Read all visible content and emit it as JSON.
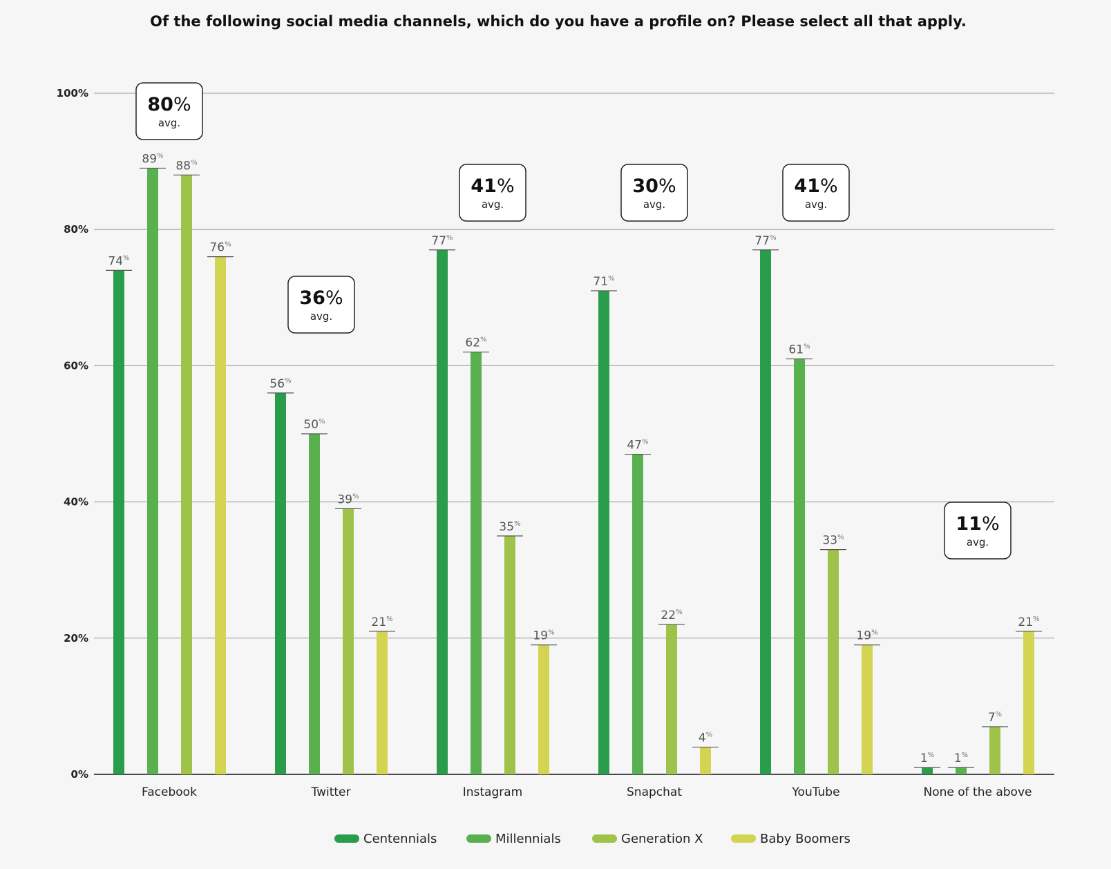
{
  "chart_data": {
    "type": "bar",
    "title": "Of the following social media channels, which do you have a profile on? Please select all that apply.",
    "categories": [
      "Facebook",
      "Twitter",
      "Instagram",
      "Snapchat",
      "YouTube",
      "None of the above"
    ],
    "series": [
      {
        "name": "Centennials",
        "color": "#2a9d4c",
        "values": [
          74,
          56,
          77,
          71,
          77,
          1
        ]
      },
      {
        "name": "Millennials",
        "color": "#58b04f",
        "values": [
          89,
          50,
          62,
          47,
          61,
          1
        ]
      },
      {
        "name": "Generation X",
        "color": "#9ec24a",
        "values": [
          88,
          39,
          35,
          22,
          33,
          7
        ]
      },
      {
        "name": "Baby Boomers",
        "color": "#d2d452",
        "values": [
          76,
          21,
          19,
          4,
          19,
          21
        ]
      }
    ],
    "averages": [
      {
        "value": "80",
        "pct": "%",
        "label": "avg."
      },
      {
        "value": "36",
        "pct": "%",
        "label": "avg."
      },
      {
        "value": "41",
        "pct": "%",
        "label": "avg."
      },
      {
        "value": "30",
        "pct": "%",
        "label": "avg."
      },
      {
        "value": "41",
        "pct": "%",
        "label": "avg."
      },
      {
        "value": "11",
        "pct": "%",
        "label": "avg."
      }
    ],
    "yticks": [
      "0%",
      "20%",
      "40%",
      "60%",
      "80%",
      "100%"
    ],
    "ylim": [
      0,
      100
    ],
    "value_suffix": "%",
    "grid": true,
    "legend": "bottom"
  }
}
